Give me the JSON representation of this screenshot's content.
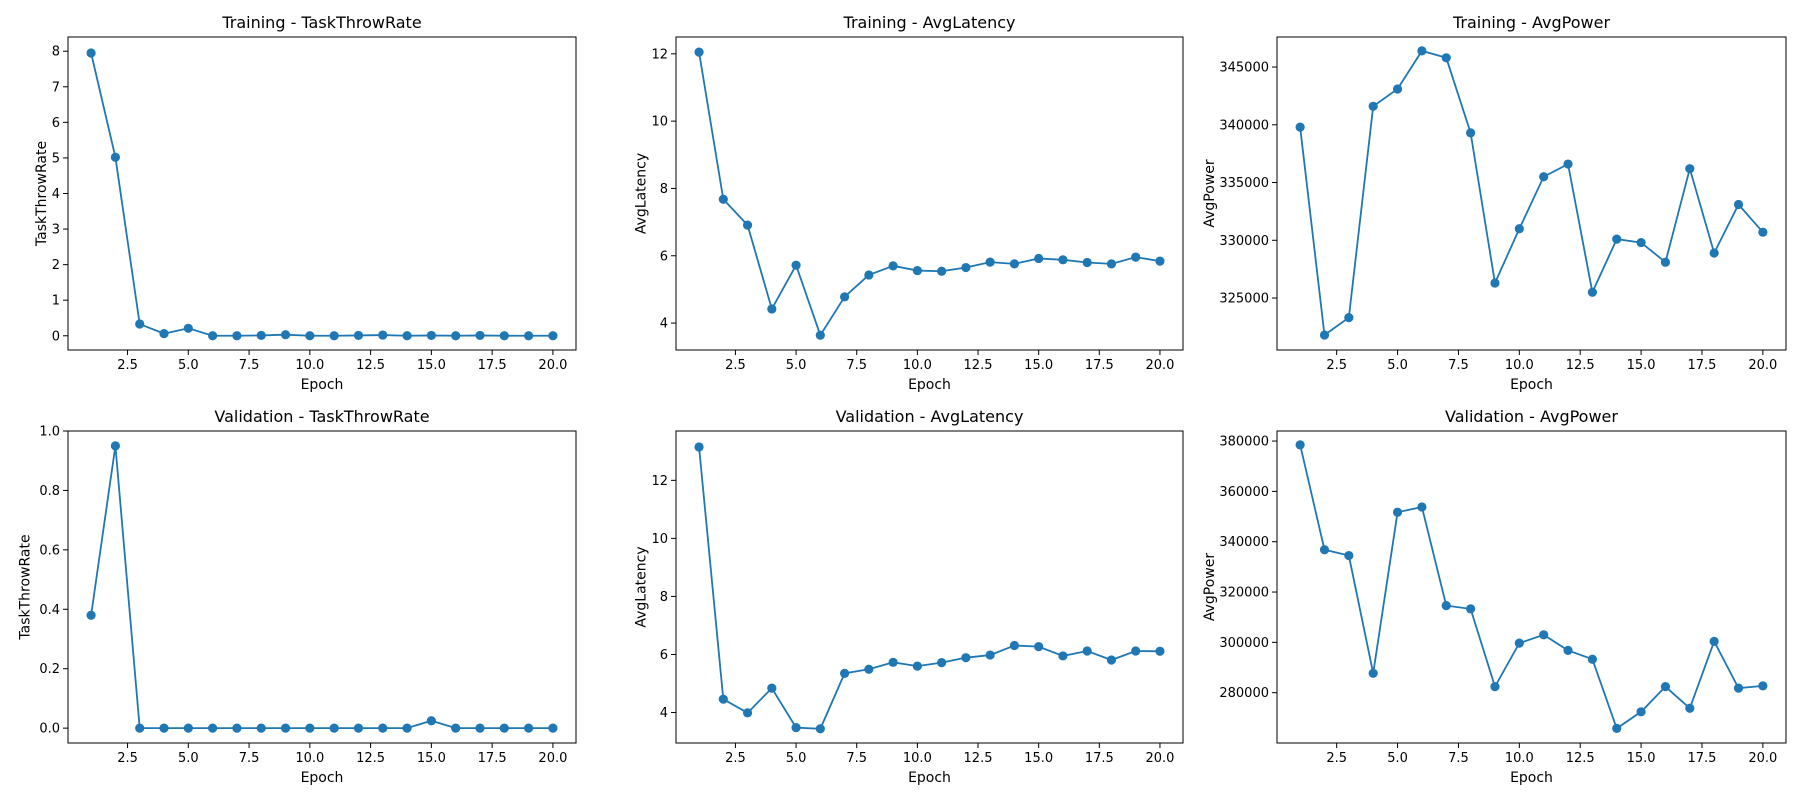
{
  "chart_data": [
    {
      "type": "line",
      "title": "Training - TaskThrowRate",
      "xlabel": "Epoch",
      "ylabel": "TaskThrowRate",
      "color": "#1f77b4",
      "grid": false,
      "xlim": [
        0.05,
        20.95
      ],
      "ylim": [
        -0.4,
        8.4
      ],
      "xticks": [
        2.5,
        5.0,
        7.5,
        10.0,
        12.5,
        15.0,
        17.5,
        20.0
      ],
      "xtick_labels": [
        "2.5",
        "5.0",
        "7.5",
        "10.0",
        "12.5",
        "15.0",
        "17.5",
        "20.0"
      ],
      "yticks": [
        0,
        1,
        2,
        3,
        4,
        5,
        6,
        7,
        8
      ],
      "ytick_labels": [
        "0",
        "1",
        "2",
        "3",
        "4",
        "5",
        "6",
        "7",
        "8"
      ],
      "x": [
        1,
        2,
        3,
        4,
        5,
        6,
        7,
        8,
        9,
        10,
        11,
        12,
        13,
        14,
        15,
        16,
        17,
        18,
        19,
        20
      ],
      "y": [
        7.95,
        5.02,
        0.33,
        0.06,
        0.21,
        0.0,
        0.0,
        0.01,
        0.03,
        0.0,
        0.0,
        0.01,
        0.02,
        0.0,
        0.01,
        0.0,
        0.01,
        0.0,
        0.0,
        0.0
      ]
    },
    {
      "type": "line",
      "title": "Training - AvgLatency",
      "xlabel": "Epoch",
      "ylabel": "AvgLatency",
      "color": "#1f77b4",
      "grid": false,
      "xlim": [
        0.05,
        20.95
      ],
      "ylim": [
        3.2,
        12.5
      ],
      "xticks": [
        2.5,
        5.0,
        7.5,
        10.0,
        12.5,
        15.0,
        17.5,
        20.0
      ],
      "xtick_labels": [
        "2.5",
        "5.0",
        "7.5",
        "10.0",
        "12.5",
        "15.0",
        "17.5",
        "20.0"
      ],
      "yticks": [
        4,
        6,
        8,
        10,
        12
      ],
      "ytick_labels": [
        "4",
        "6",
        "8",
        "10",
        "12"
      ],
      "x": [
        1,
        2,
        3,
        4,
        5,
        6,
        7,
        8,
        9,
        10,
        11,
        12,
        13,
        14,
        15,
        16,
        17,
        18,
        19,
        20
      ],
      "y": [
        12.05,
        7.68,
        6.91,
        4.42,
        5.72,
        3.64,
        4.78,
        5.43,
        5.7,
        5.56,
        5.54,
        5.65,
        5.81,
        5.76,
        5.92,
        5.88,
        5.8,
        5.76,
        5.96,
        5.84
      ]
    },
    {
      "type": "line",
      "title": "Training - AvgPower",
      "xlabel": "Epoch",
      "ylabel": "AvgPower",
      "color": "#1f77b4",
      "grid": false,
      "xlim": [
        0.05,
        20.95
      ],
      "ylim": [
        320500,
        347600
      ],
      "xticks": [
        2.5,
        5.0,
        7.5,
        10.0,
        12.5,
        15.0,
        17.5,
        20.0
      ],
      "xtick_labels": [
        "2.5",
        "5.0",
        "7.5",
        "10.0",
        "12.5",
        "15.0",
        "17.5",
        "20.0"
      ],
      "yticks": [
        325000,
        330000,
        335000,
        340000,
        345000
      ],
      "ytick_labels": [
        "325000",
        "330000",
        "335000",
        "340000",
        "345000"
      ],
      "x": [
        1,
        2,
        3,
        4,
        5,
        6,
        7,
        8,
        9,
        10,
        11,
        12,
        13,
        14,
        15,
        16,
        17,
        18,
        19,
        20
      ],
      "y": [
        339800,
        321800,
        323300,
        341600,
        343100,
        346400,
        345800,
        339300,
        326300,
        331000,
        335500,
        336600,
        325500,
        330100,
        329800,
        328100,
        336200,
        328900,
        333100,
        330700
      ]
    },
    {
      "type": "line",
      "title": "Validation - TaskThrowRate",
      "xlabel": "Epoch",
      "ylabel": "TaskThrowRate",
      "color": "#1f77b4",
      "grid": false,
      "xlim": [
        0.05,
        20.95
      ],
      "ylim": [
        -0.05,
        1.0
      ],
      "xticks": [
        2.5,
        5.0,
        7.5,
        10.0,
        12.5,
        15.0,
        17.5,
        20.0
      ],
      "xtick_labels": [
        "2.5",
        "5.0",
        "7.5",
        "10.0",
        "12.5",
        "15.0",
        "17.5",
        "20.0"
      ],
      "yticks": [
        0.0,
        0.2,
        0.4,
        0.6,
        0.8,
        1.0
      ],
      "ytick_labels": [
        "0.0",
        "0.2",
        "0.4",
        "0.6",
        "0.8",
        "1.0"
      ],
      "x": [
        1,
        2,
        3,
        4,
        5,
        6,
        7,
        8,
        9,
        10,
        11,
        12,
        13,
        14,
        15,
        16,
        17,
        18,
        19,
        20
      ],
      "y": [
        0.38,
        0.95,
        0.0,
        0.0,
        0.0,
        0.0,
        0.0,
        0.0,
        0.0,
        0.0,
        0.0,
        0.0,
        0.0,
        0.0,
        0.025,
        0.0,
        0.0,
        0.0,
        0.0,
        0.0
      ]
    },
    {
      "type": "line",
      "title": "Validation - AvgLatency",
      "xlabel": "Epoch",
      "ylabel": "AvgLatency",
      "color": "#1f77b4",
      "grid": false,
      "xlim": [
        0.05,
        20.95
      ],
      "ylim": [
        2.95,
        13.7
      ],
      "xticks": [
        2.5,
        5.0,
        7.5,
        10.0,
        12.5,
        15.0,
        17.5,
        20.0
      ],
      "xtick_labels": [
        "2.5",
        "5.0",
        "7.5",
        "10.0",
        "12.5",
        "15.0",
        "17.5",
        "20.0"
      ],
      "yticks": [
        4,
        6,
        8,
        10,
        12
      ],
      "ytick_labels": [
        "4",
        "6",
        "8",
        "10",
        "12"
      ],
      "x": [
        1,
        2,
        3,
        4,
        5,
        6,
        7,
        8,
        9,
        10,
        11,
        12,
        13,
        14,
        15,
        16,
        17,
        18,
        19,
        20
      ],
      "y": [
        13.15,
        4.46,
        3.99,
        4.84,
        3.48,
        3.44,
        5.35,
        5.49,
        5.73,
        5.6,
        5.72,
        5.89,
        5.98,
        6.31,
        6.27,
        5.95,
        6.12,
        5.81,
        6.12,
        6.11
      ]
    },
    {
      "type": "line",
      "title": "Validation - AvgPower",
      "xlabel": "Epoch",
      "ylabel": "AvgPower",
      "color": "#1f77b4",
      "grid": false,
      "xlim": [
        0.05,
        20.95
      ],
      "ylim": [
        260000,
        384000
      ],
      "xticks": [
        2.5,
        5.0,
        7.5,
        10.0,
        12.5,
        15.0,
        17.5,
        20.0
      ],
      "xtick_labels": [
        "2.5",
        "5.0",
        "7.5",
        "10.0",
        "12.5",
        "15.0",
        "17.5",
        "20.0"
      ],
      "yticks": [
        280000,
        300000,
        320000,
        340000,
        360000,
        380000
      ],
      "ytick_labels": [
        "280000",
        "300000",
        "320000",
        "340000",
        "360000",
        "380000"
      ],
      "x": [
        1,
        2,
        3,
        4,
        5,
        6,
        7,
        8,
        9,
        10,
        11,
        12,
        13,
        14,
        15,
        16,
        17,
        18,
        19,
        20
      ],
      "y": [
        378500,
        336800,
        334500,
        287700,
        351700,
        353800,
        314600,
        313300,
        282400,
        299700,
        303000,
        296800,
        293300,
        265800,
        272400,
        282400,
        273800,
        300400,
        281800,
        282700
      ]
    }
  ]
}
